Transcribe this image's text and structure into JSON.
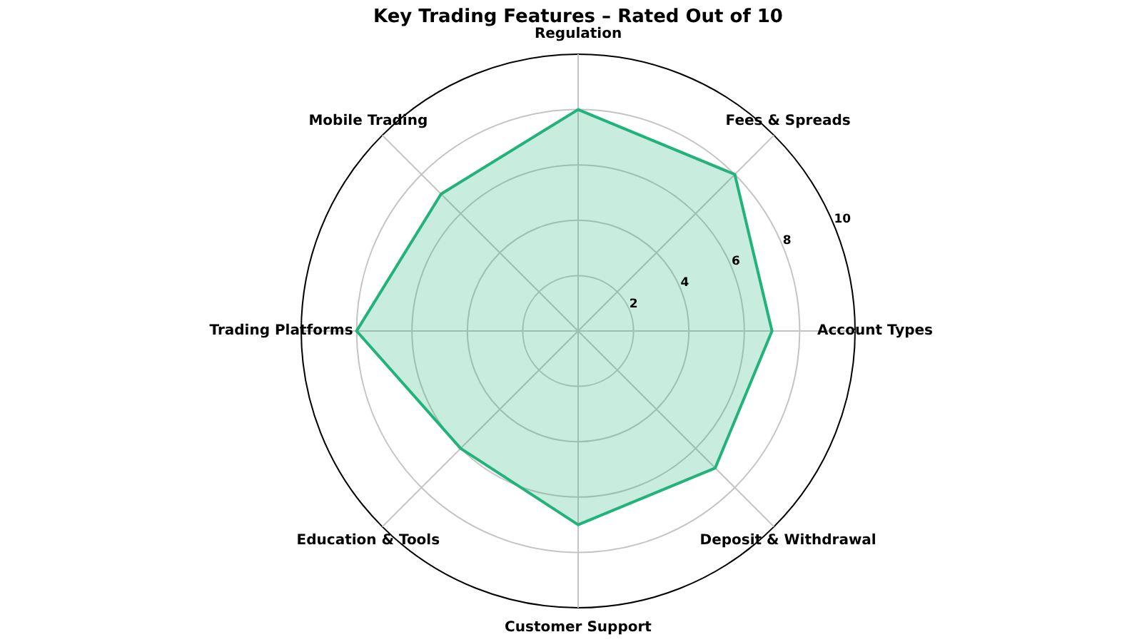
{
  "chart_data": {
    "type": "radar",
    "title": "Key Trading Features – Rated Out of 10",
    "categories": [
      "Regulation",
      "Fees & Spreads",
      "Account Types",
      "Deposit & Withdrawal",
      "Customer Support",
      "Education & Tools",
      "Trading Platforms",
      "Mobile Trading"
    ],
    "series": [
      {
        "color": "#22b37a",
        "values": [
          8,
          8,
          7,
          7,
          7,
          6,
          8,
          7
        ]
      }
    ],
    "ylim": [
      0,
      10
    ],
    "yticks": [
      2,
      4,
      6,
      8,
      10
    ],
    "grid": true
  }
}
